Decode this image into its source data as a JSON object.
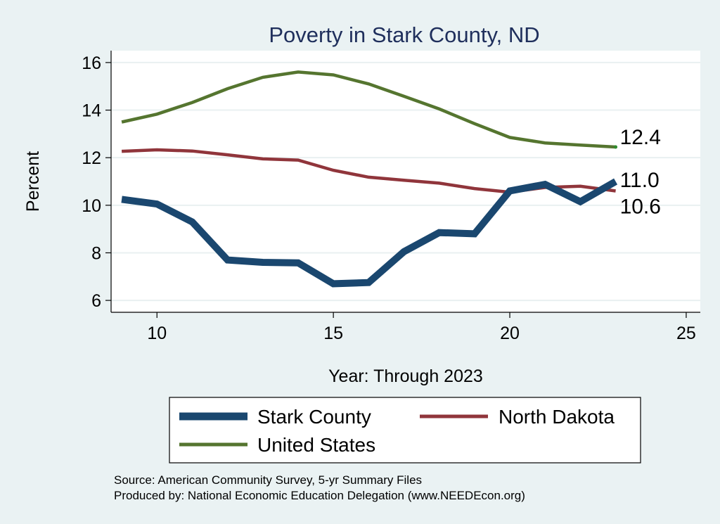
{
  "chart_data": {
    "type": "line",
    "title": "Poverty in Stark County, ND",
    "xlabel": "Year: Through 2023",
    "ylabel": "Percent",
    "xlim": [
      8.7,
      25.4
    ],
    "ylim": [
      5.5,
      16.5
    ],
    "xticks": [
      10,
      15,
      20,
      25
    ],
    "yticks": [
      6,
      8,
      10,
      12,
      14,
      16
    ],
    "grid": true,
    "x": [
      9,
      10,
      11,
      12,
      13,
      14,
      15,
      16,
      17,
      18,
      19,
      20,
      21,
      22,
      23
    ],
    "series": [
      {
        "name": "Stark County",
        "color": "#1a476f",
        "values": [
          10.25,
          10.05,
          9.3,
          7.7,
          7.6,
          7.58,
          6.7,
          6.75,
          8.05,
          8.85,
          8.8,
          10.6,
          10.88,
          10.15,
          11.0
        ],
        "end_label": "11.0"
      },
      {
        "name": "North Dakota",
        "color": "#90353b",
        "values": [
          12.27,
          12.33,
          12.28,
          12.12,
          11.95,
          11.9,
          11.47,
          11.18,
          11.05,
          10.93,
          10.7,
          10.55,
          10.75,
          10.8,
          10.6
        ],
        "end_label": "10.6"
      },
      {
        "name": "United States",
        "color": "#55752f",
        "values": [
          13.5,
          13.83,
          14.32,
          14.9,
          15.38,
          15.6,
          15.48,
          15.1,
          14.58,
          14.05,
          13.43,
          12.85,
          12.62,
          12.53,
          12.45
        ],
        "end_label": "12.4"
      }
    ],
    "legend": {
      "position": "bottom",
      "entries": [
        "Stark County",
        "North Dakota",
        "United States"
      ]
    },
    "notes": [
      "Source: American Community Survey, 5-yr Summary Files",
      "Produced by: National Economic Education Delegation (www.NEEDEcon.org)"
    ]
  }
}
